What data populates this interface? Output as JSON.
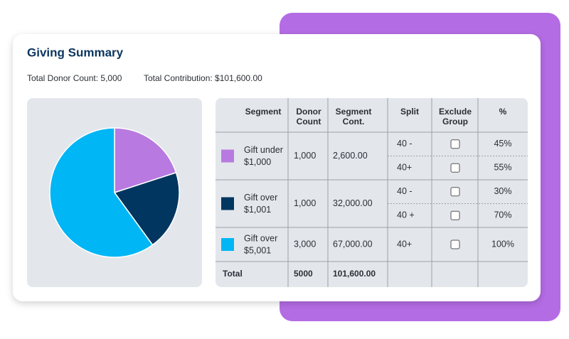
{
  "header": {
    "title": "Giving Summary",
    "donor_count": "Total Donor Count: 5,000",
    "contribution": "Total Contribution: $101,600.00"
  },
  "table": {
    "columns": [
      [
        "Segment"
      ],
      [
        "Donor",
        "Count"
      ],
      [
        "Segment",
        "Cont."
      ],
      [
        "Split"
      ],
      [
        "Exclude",
        "Group"
      ],
      [
        "%"
      ]
    ],
    "rows": [
      {
        "color": "#b87ae0",
        "segment": [
          "Gift under",
          "$1,000"
        ],
        "donor_count": {
          "value": 1000,
          "label": "1,000"
        },
        "contribution": "2,600.00",
        "splits": [
          {
            "split": "40 -",
            "percent": "45%"
          },
          {
            "split": "40+",
            "percent": "55%"
          }
        ]
      },
      {
        "color": "#003660",
        "segment": [
          "Gift over",
          "$1,001"
        ],
        "donor_count": {
          "value": 1000,
          "label": "1,000"
        },
        "contribution": "32,000.00",
        "splits": [
          {
            "split": "40 -",
            "percent": "30%"
          },
          {
            "split": "40 +",
            "percent": "70%"
          }
        ]
      },
      {
        "color": "#00b6f5",
        "segment": [
          "Gift over",
          "$5,001"
        ],
        "donor_count": {
          "value": 3000,
          "label": "3,000"
        },
        "contribution": "67,000.00",
        "splits": [
          {
            "split": "40+",
            "percent": "100%"
          }
        ]
      }
    ],
    "total": {
      "label": "Total",
      "donor_count": "5000",
      "contribution": "101,600.00"
    }
  }
}
